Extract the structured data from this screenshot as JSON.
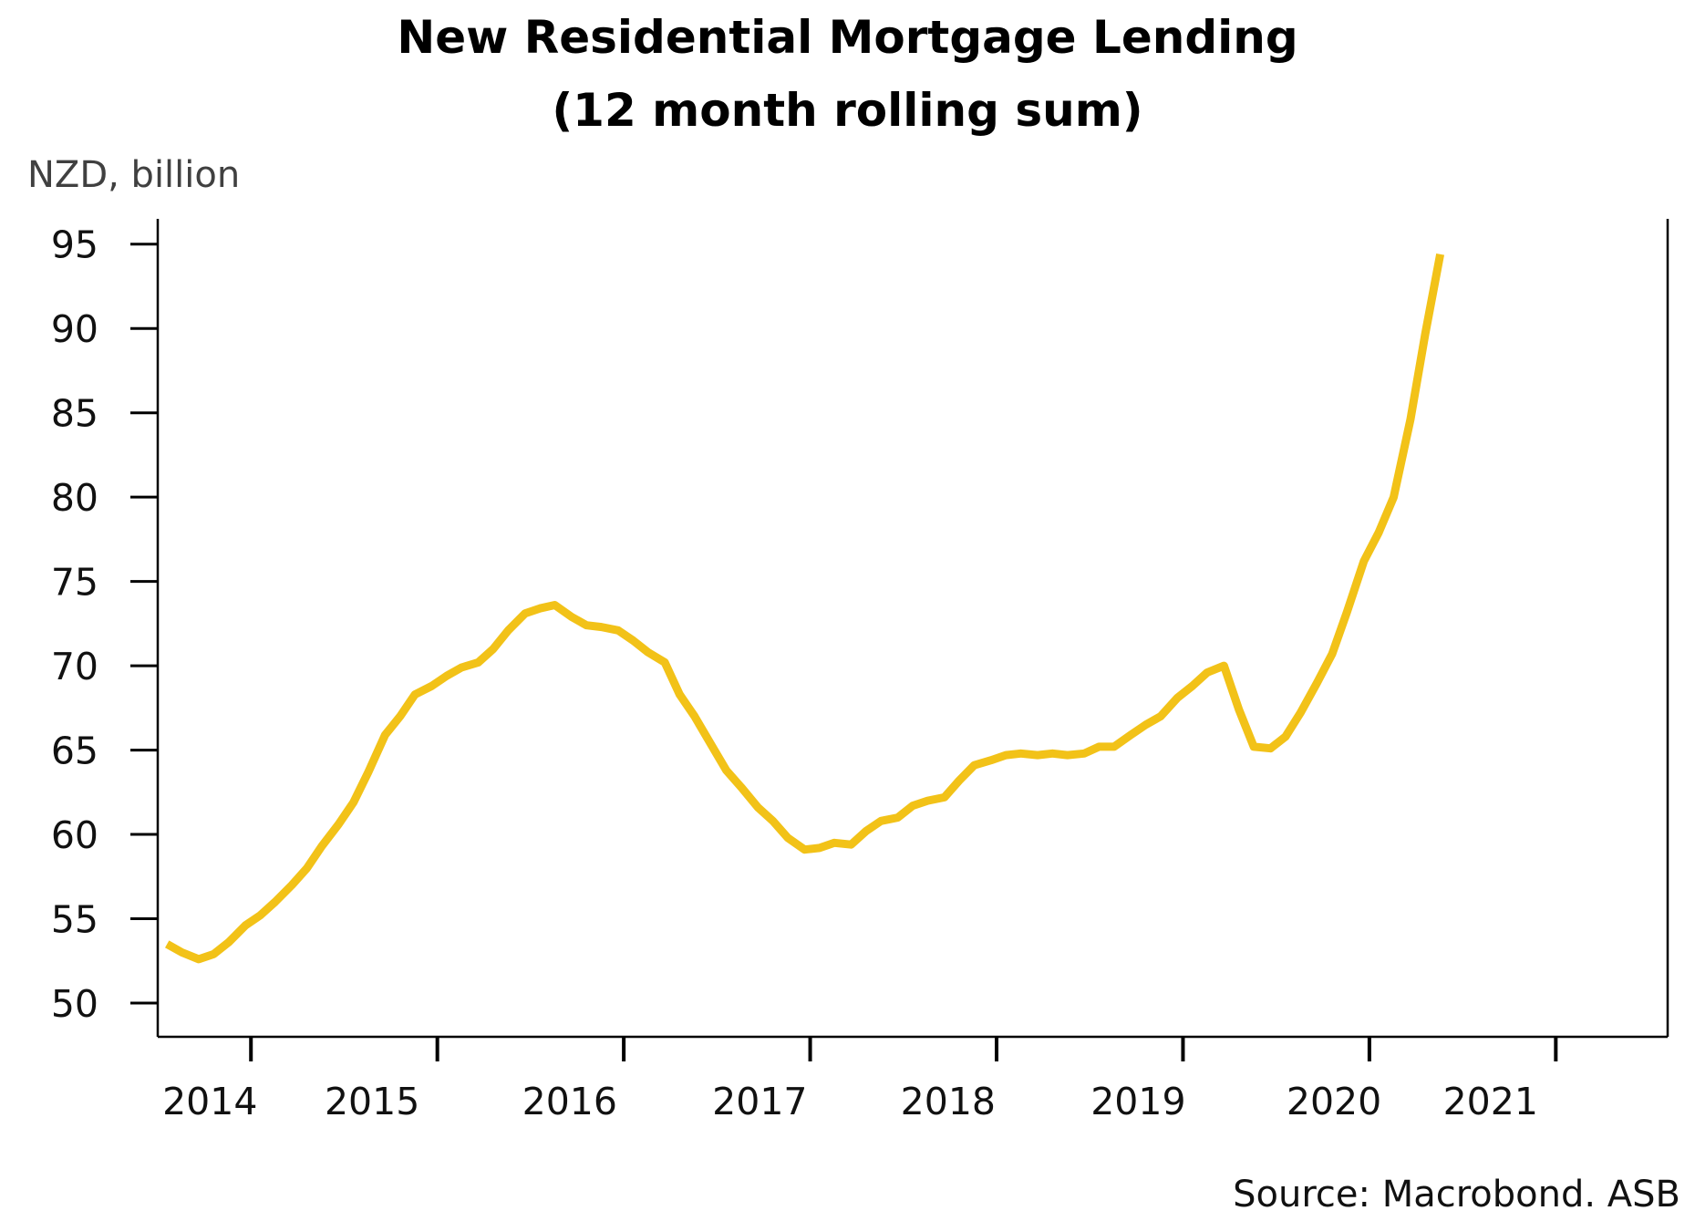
{
  "chart_data": {
    "type": "line",
    "title": "New Residential Mortgage Lending",
    "subtitle": "(12 month rolling sum)",
    "ylabel": "NZD, billion",
    "xlabel": "",
    "source": "Source: Macrobond. ASB",
    "ylim": [
      48,
      96.5
    ],
    "yticks": [
      50,
      55,
      60,
      65,
      70,
      75,
      80,
      85,
      90,
      95
    ],
    "xlim": [
      2013.5,
      2021.6
    ],
    "x_tick_marks": [
      2014,
      2015,
      2016,
      2017,
      2018,
      2019,
      2020,
      2021
    ],
    "x_labels": [
      {
        "text": "2014",
        "x": 2013.78
      },
      {
        "text": "2015",
        "x": 2014.65
      },
      {
        "text": "2016",
        "x": 2015.71
      },
      {
        "text": "2017",
        "x": 2016.73
      },
      {
        "text": "2018",
        "x": 2017.74
      },
      {
        "text": "2019",
        "x": 2018.76
      },
      {
        "text": "2020",
        "x": 2019.81
      },
      {
        "text": "2021",
        "x": 2020.65
      }
    ],
    "grid": false,
    "legend": "none",
    "series": [
      {
        "color": "#F2C218",
        "points": [
          [
            2013.55,
            53.5
          ],
          [
            2013.63,
            53.0
          ],
          [
            2013.72,
            52.6
          ],
          [
            2013.8,
            52.9
          ],
          [
            2013.88,
            53.6
          ],
          [
            2013.97,
            54.6
          ],
          [
            2014.05,
            55.2
          ],
          [
            2014.13,
            56.0
          ],
          [
            2014.22,
            57.0
          ],
          [
            2014.3,
            58.0
          ],
          [
            2014.38,
            59.3
          ],
          [
            2014.47,
            60.6
          ],
          [
            2014.55,
            61.9
          ],
          [
            2014.63,
            63.7
          ],
          [
            2014.72,
            65.9
          ],
          [
            2014.8,
            67.0
          ],
          [
            2014.88,
            68.3
          ],
          [
            2014.97,
            68.8
          ],
          [
            2015.05,
            69.4
          ],
          [
            2015.13,
            69.9
          ],
          [
            2015.22,
            70.2
          ],
          [
            2015.3,
            71.0
          ],
          [
            2015.38,
            72.1
          ],
          [
            2015.47,
            73.1
          ],
          [
            2015.55,
            73.4
          ],
          [
            2015.63,
            73.6
          ],
          [
            2015.72,
            72.9
          ],
          [
            2015.8,
            72.4
          ],
          [
            2015.88,
            72.3
          ],
          [
            2015.97,
            72.1
          ],
          [
            2016.05,
            71.5
          ],
          [
            2016.13,
            70.8
          ],
          [
            2016.22,
            70.2
          ],
          [
            2016.3,
            68.3
          ],
          [
            2016.38,
            67.0
          ],
          [
            2016.47,
            65.3
          ],
          [
            2016.55,
            63.8
          ],
          [
            2016.63,
            62.8
          ],
          [
            2016.72,
            61.6
          ],
          [
            2016.8,
            60.8
          ],
          [
            2016.88,
            59.8
          ],
          [
            2016.97,
            59.1
          ],
          [
            2017.05,
            59.2
          ],
          [
            2017.13,
            59.5
          ],
          [
            2017.22,
            59.4
          ],
          [
            2017.3,
            60.2
          ],
          [
            2017.38,
            60.8
          ],
          [
            2017.47,
            61.0
          ],
          [
            2017.55,
            61.7
          ],
          [
            2017.63,
            62.0
          ],
          [
            2017.72,
            62.2
          ],
          [
            2017.8,
            63.2
          ],
          [
            2017.88,
            64.1
          ],
          [
            2017.97,
            64.4
          ],
          [
            2018.05,
            64.7
          ],
          [
            2018.13,
            64.8
          ],
          [
            2018.22,
            64.7
          ],
          [
            2018.3,
            64.8
          ],
          [
            2018.38,
            64.7
          ],
          [
            2018.47,
            64.8
          ],
          [
            2018.55,
            65.2
          ],
          [
            2018.63,
            65.2
          ],
          [
            2018.72,
            65.9
          ],
          [
            2018.8,
            66.5
          ],
          [
            2018.88,
            67.0
          ],
          [
            2018.97,
            68.1
          ],
          [
            2019.05,
            68.8
          ],
          [
            2019.13,
            69.6
          ],
          [
            2019.22,
            70.0
          ],
          [
            2019.3,
            67.4
          ],
          [
            2019.38,
            65.2
          ],
          [
            2019.47,
            65.1
          ],
          [
            2019.55,
            65.8
          ],
          [
            2019.63,
            67.2
          ],
          [
            2019.72,
            69.0
          ],
          [
            2019.8,
            70.7
          ],
          [
            2019.88,
            73.2
          ],
          [
            2019.97,
            76.2
          ],
          [
            2020.05,
            77.9
          ],
          [
            2020.13,
            80.0
          ],
          [
            2020.22,
            84.6
          ],
          [
            2020.3,
            89.7
          ],
          [
            2020.38,
            94.4
          ]
        ]
      }
    ]
  }
}
